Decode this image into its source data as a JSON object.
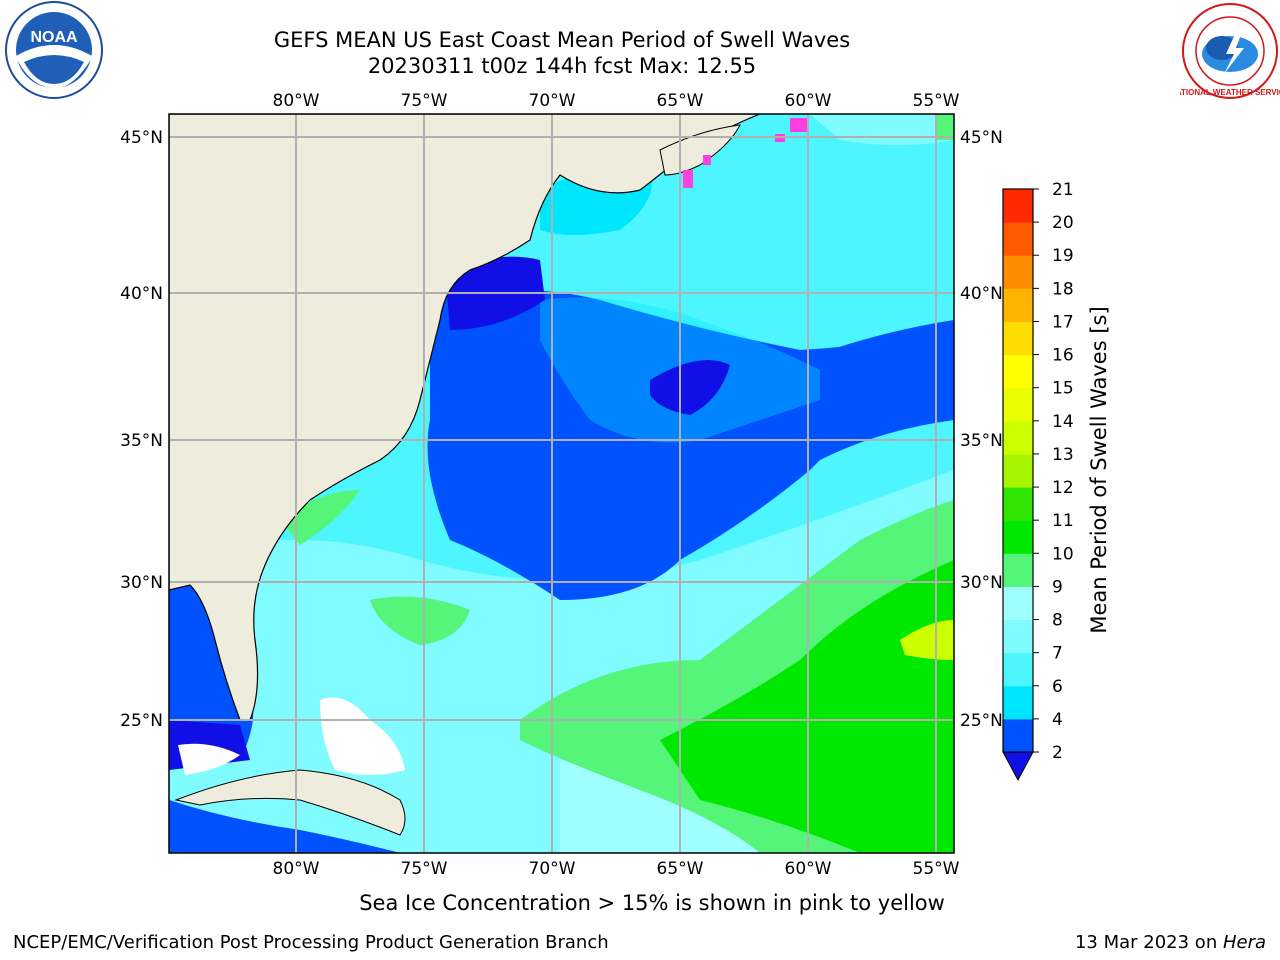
{
  "title": {
    "line1": "GEFS MEAN US East Coast Mean Period of Swell Waves",
    "line2": "20230311 t00z 144h fcst   Max: 12.55"
  },
  "map": {
    "lon_labels": [
      "80°W",
      "75°W",
      "70°W",
      "65°W",
      "60°W",
      "55°W"
    ],
    "lat_labels": [
      "45°N",
      "40°N",
      "35°N",
      "30°N",
      "25°N"
    ],
    "lon_range": [
      -85,
      -54
    ],
    "lat_range": [
      20.5,
      46
    ],
    "land_color": "#eeecdc",
    "grid_color": "#b0b0b0"
  },
  "colorbar": {
    "label": "Mean Period of Swell Waves [s]",
    "ticks": [
      "2",
      "4",
      "6",
      "7",
      "8",
      "9",
      "10",
      "11",
      "12",
      "13",
      "14",
      "15",
      "16",
      "17",
      "18",
      "19",
      "20",
      "21"
    ],
    "colors": [
      "#0052ff",
      "#00e6ff",
      "#4df6ff",
      "#80fbff",
      "#a0ffff",
      "#55f57a",
      "#00e800",
      "#30e600",
      "#a8f500",
      "#ccff00",
      "#eaff00",
      "#ffff00",
      "#ffdd00",
      "#ffb400",
      "#ff8c00",
      "#ff5a00",
      "#ff2a00"
    ],
    "under_color": "#1010e6"
  },
  "note": "Sea Ice Concentration > 15% is shown in pink to yellow",
  "footer": {
    "left": "NCEP/EMC/Verification Post Processing Product Generation Branch",
    "right_date": "13 Mar 2023 on ",
    "right_host": "Hera"
  },
  "logos": {
    "left": "NOAA",
    "right": "NATIONAL WEATHER SERVICE"
  }
}
